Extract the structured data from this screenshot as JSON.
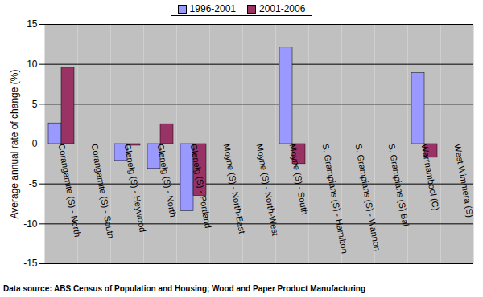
{
  "chart_data": {
    "type": "bar",
    "y_label": "Average annual rate of change (%)",
    "caption": "Data source: ABS Census of Population and Housing; Wood and Paper Product Manufacturing",
    "categories": [
      "Corangamite (S) - North",
      "Corangamite (S) - South",
      "Glenelg (S) - Heywood",
      "Glenelg (S) - North",
      "Glenelg (S) - Portland",
      "Moyne (S) - North-East",
      "Moyne (S) - North-West",
      "Moyne (S) - South",
      "S. Grampians (S) - Hamilton",
      "S. Grampians (S) - Wannon",
      "S. Grampians (S) Bal",
      "Warrnambool (C)",
      "West Wimmera (S)"
    ],
    "series": [
      {
        "name": "1996-2001",
        "color": "#9999ff",
        "values": [
          2.6,
          null,
          -2.1,
          -3.1,
          -8.4,
          null,
          null,
          12.1,
          null,
          null,
          null,
          8.9,
          null
        ]
      },
      {
        "name": "2001-2006",
        "color": "#993366",
        "values": [
          9.5,
          null,
          -0.2,
          2.5,
          -6.5,
          null,
          null,
          -2.5,
          null,
          null,
          null,
          -1.7,
          null
        ]
      }
    ],
    "ylim": [
      -15,
      15
    ],
    "yticks": [
      -15,
      -10,
      -5,
      0,
      5,
      10,
      15
    ],
    "grid": true,
    "legend": "top"
  }
}
